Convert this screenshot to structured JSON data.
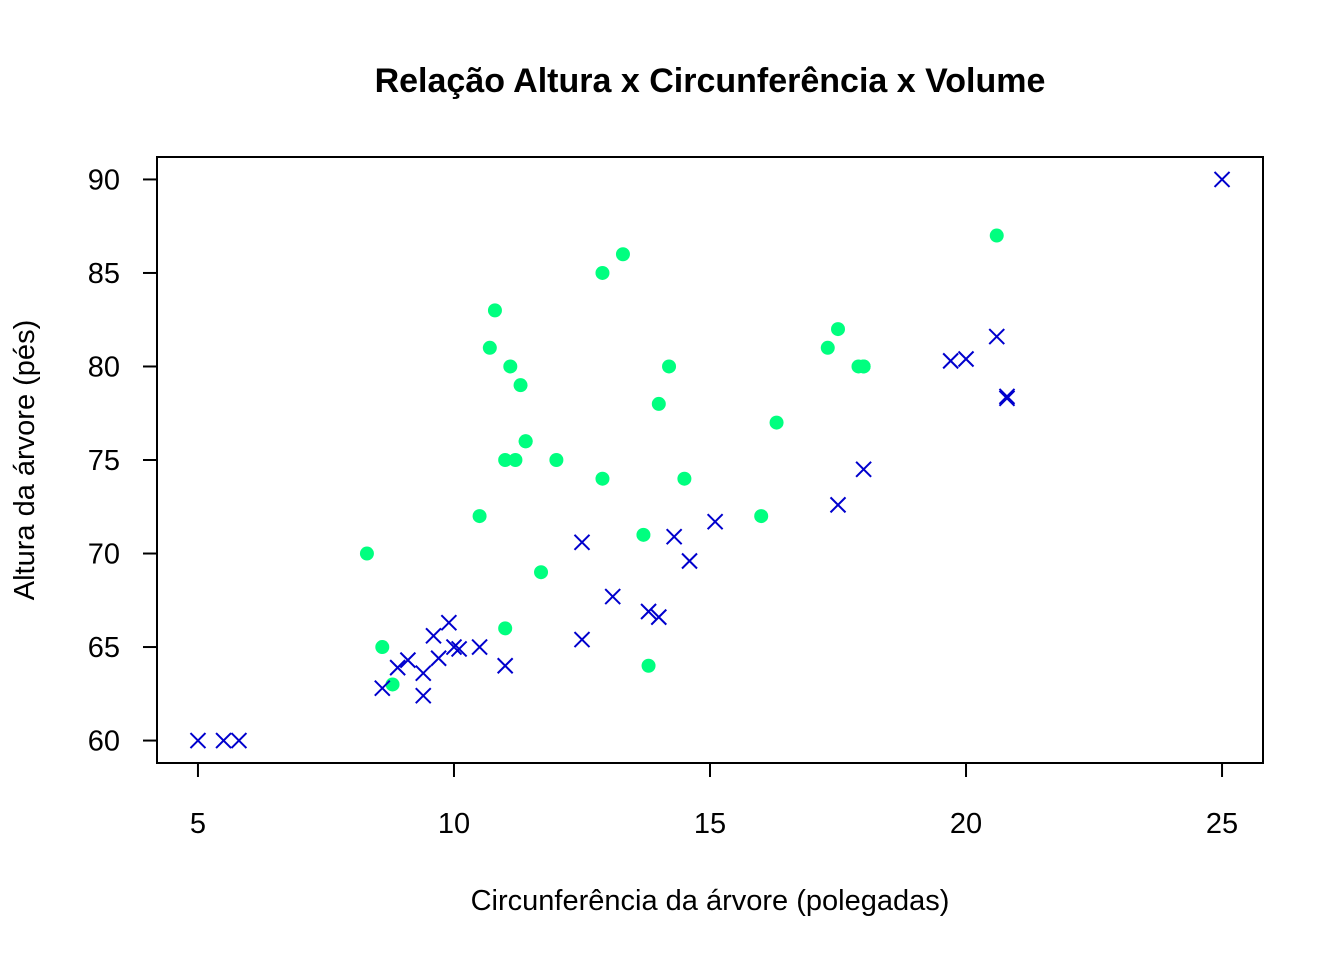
{
  "chart_data": {
    "type": "scatter",
    "title": "Relação Altura x Circunferência x Volume",
    "xlabel": "Circunferência da árvore (polegadas)",
    "ylabel": "Altura da árvore (pés)",
    "xlim": [
      4.2,
      25.8
    ],
    "ylim": [
      58.8,
      91.2
    ],
    "xticks": [
      5,
      10,
      15,
      20,
      25
    ],
    "yticks": [
      60,
      65,
      70,
      75,
      80,
      85,
      90
    ],
    "grid": false,
    "series": [
      {
        "marker": "circle",
        "color": "#00FF7F",
        "points": [
          [
            8.3,
            70
          ],
          [
            8.6,
            65
          ],
          [
            8.8,
            63
          ],
          [
            10.5,
            72
          ],
          [
            10.7,
            81
          ],
          [
            10.8,
            83
          ],
          [
            11.0,
            66
          ],
          [
            11.0,
            75
          ],
          [
            11.1,
            80
          ],
          [
            11.2,
            75
          ],
          [
            11.3,
            79
          ],
          [
            11.4,
            76
          ],
          [
            11.4,
            76
          ],
          [
            11.7,
            69
          ],
          [
            12.0,
            75
          ],
          [
            12.9,
            74
          ],
          [
            12.9,
            85
          ],
          [
            13.3,
            86
          ],
          [
            13.7,
            71
          ],
          [
            13.8,
            64
          ],
          [
            14.0,
            78
          ],
          [
            14.2,
            80
          ],
          [
            14.5,
            74
          ],
          [
            16.0,
            72
          ],
          [
            16.3,
            77
          ],
          [
            17.3,
            81
          ],
          [
            17.5,
            82
          ],
          [
            17.9,
            80
          ],
          [
            18.0,
            80
          ],
          [
            18.0,
            80
          ],
          [
            20.6,
            87
          ]
        ]
      },
      {
        "marker": "x",
        "color": "#0000CD",
        "points": [
          [
            5.0,
            60
          ],
          [
            5.5,
            60
          ],
          [
            5.8,
            60
          ],
          [
            8.6,
            62.8
          ],
          [
            8.9,
            63.9
          ],
          [
            9.1,
            64.3
          ],
          [
            9.4,
            62.4
          ],
          [
            9.4,
            63.6
          ],
          [
            9.6,
            65.6
          ],
          [
            9.7,
            64.4
          ],
          [
            9.9,
            66.3
          ],
          [
            10.0,
            65.0
          ],
          [
            10.1,
            64.9
          ],
          [
            10.5,
            65.0
          ],
          [
            11.0,
            64.0
          ],
          [
            12.5,
            70.6
          ],
          [
            12.5,
            65.4
          ],
          [
            13.1,
            67.7
          ],
          [
            13.8,
            66.9
          ],
          [
            14.0,
            66.6
          ],
          [
            14.3,
            70.9
          ],
          [
            14.6,
            69.6
          ],
          [
            15.1,
            71.7
          ],
          [
            17.5,
            72.6
          ],
          [
            18.0,
            74.5
          ],
          [
            19.7,
            80.3
          ],
          [
            20.0,
            80.4
          ],
          [
            20.6,
            81.6
          ],
          [
            20.8,
            78.4
          ],
          [
            20.8,
            78.3
          ],
          [
            25.0,
            90
          ]
        ]
      }
    ]
  }
}
